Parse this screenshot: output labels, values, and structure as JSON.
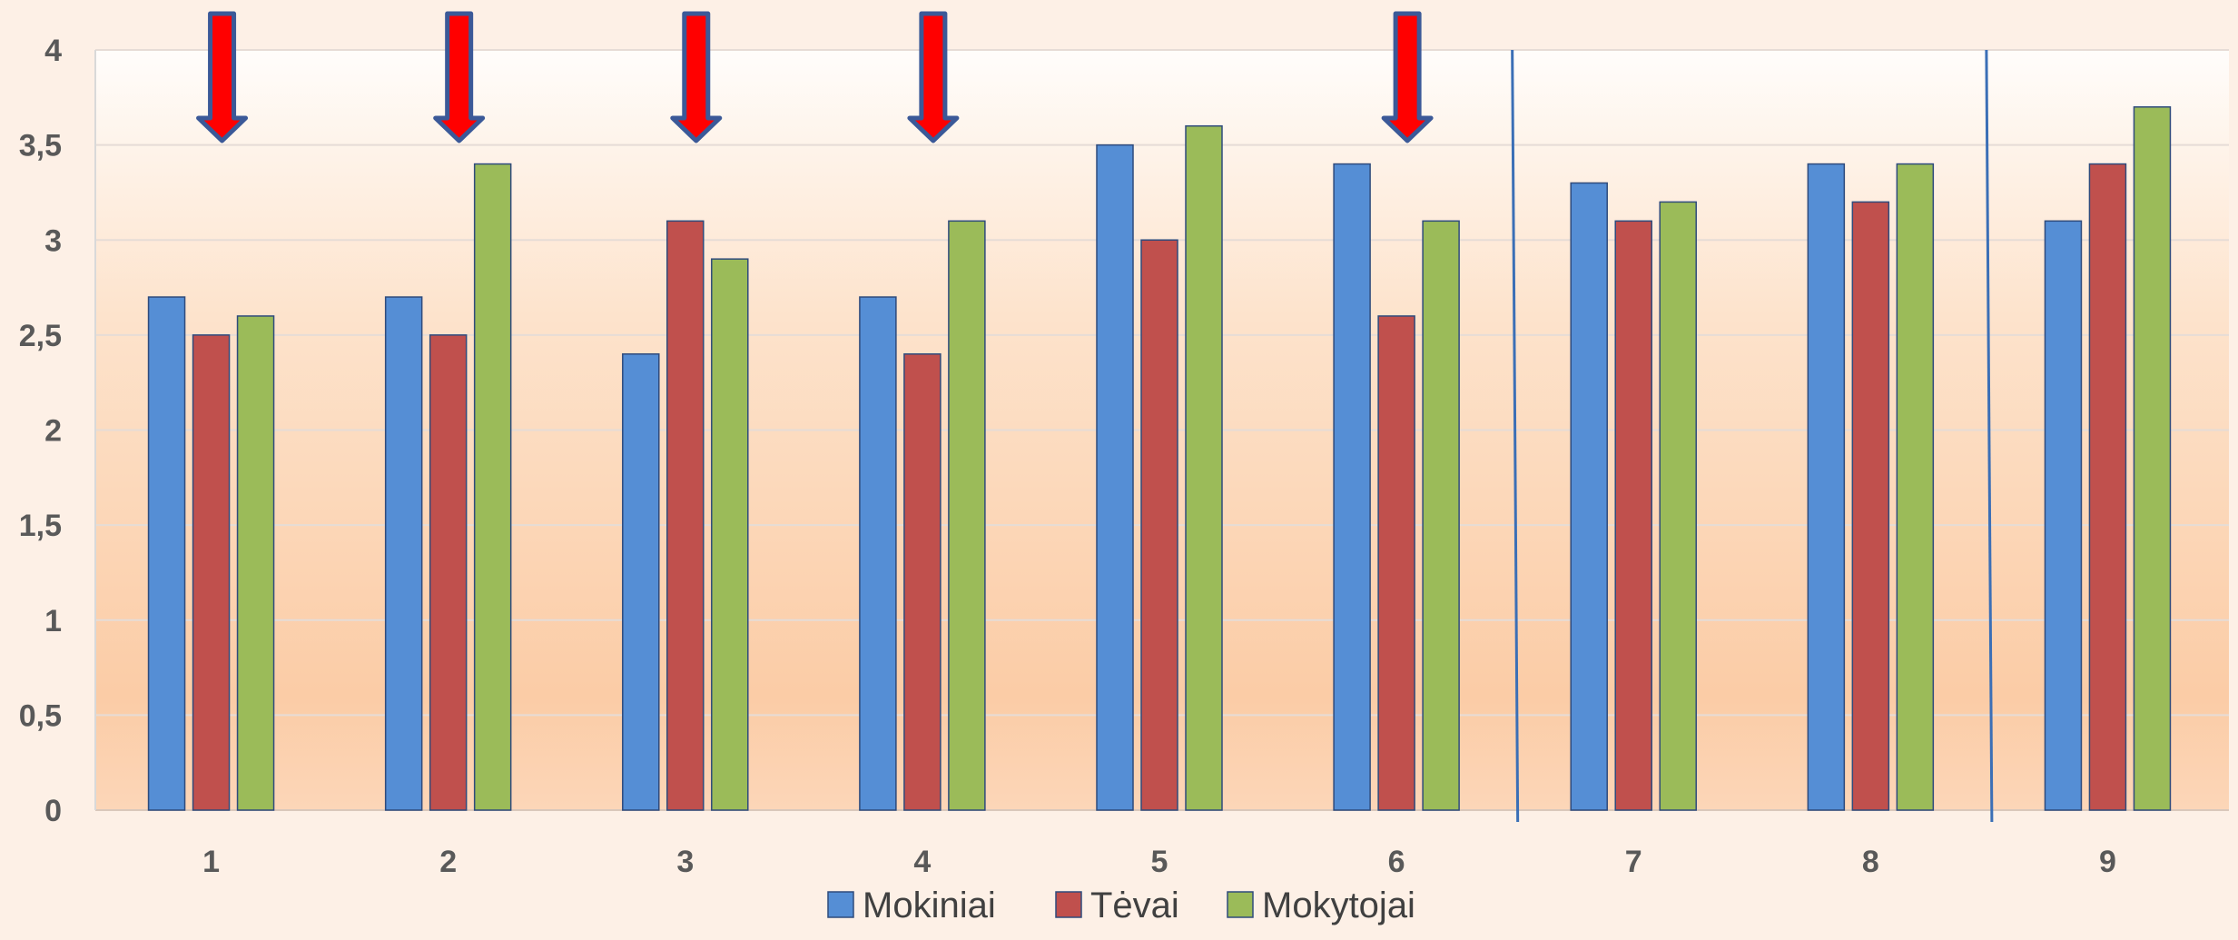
{
  "chart_data": {
    "type": "bar",
    "categories": [
      "1",
      "2",
      "3",
      "4",
      "5",
      "6",
      "7",
      "8",
      "9"
    ],
    "series": [
      {
        "name": "Mokiniai",
        "color": "#558ed5",
        "values": [
          2.7,
          2.7,
          2.4,
          2.7,
          3.5,
          3.4,
          3.3,
          3.4,
          3.1
        ]
      },
      {
        "name": "Tėvai",
        "color": "#c0504d",
        "values": [
          2.5,
          2.5,
          3.1,
          2.4,
          3.0,
          2.6,
          3.1,
          3.2,
          3.4
        ]
      },
      {
        "name": "Mokytojai",
        "color": "#9bbb59",
        "values": [
          2.6,
          3.4,
          2.9,
          3.1,
          3.6,
          3.1,
          3.2,
          3.4,
          3.7
        ]
      }
    ],
    "ylim": [
      0,
      4
    ],
    "y_ticks": [
      "0",
      "0,5",
      "1",
      "1,5",
      "2",
      "2,5",
      "3",
      "3,5",
      "4"
    ],
    "grid": true,
    "legend_position": "bottom",
    "annotations": {
      "arrow_categories": [
        "1",
        "2",
        "3",
        "4",
        "6"
      ],
      "arrow_color": "#ff0000",
      "divider_lines_after_categories": [
        "6",
        "8"
      ]
    }
  }
}
